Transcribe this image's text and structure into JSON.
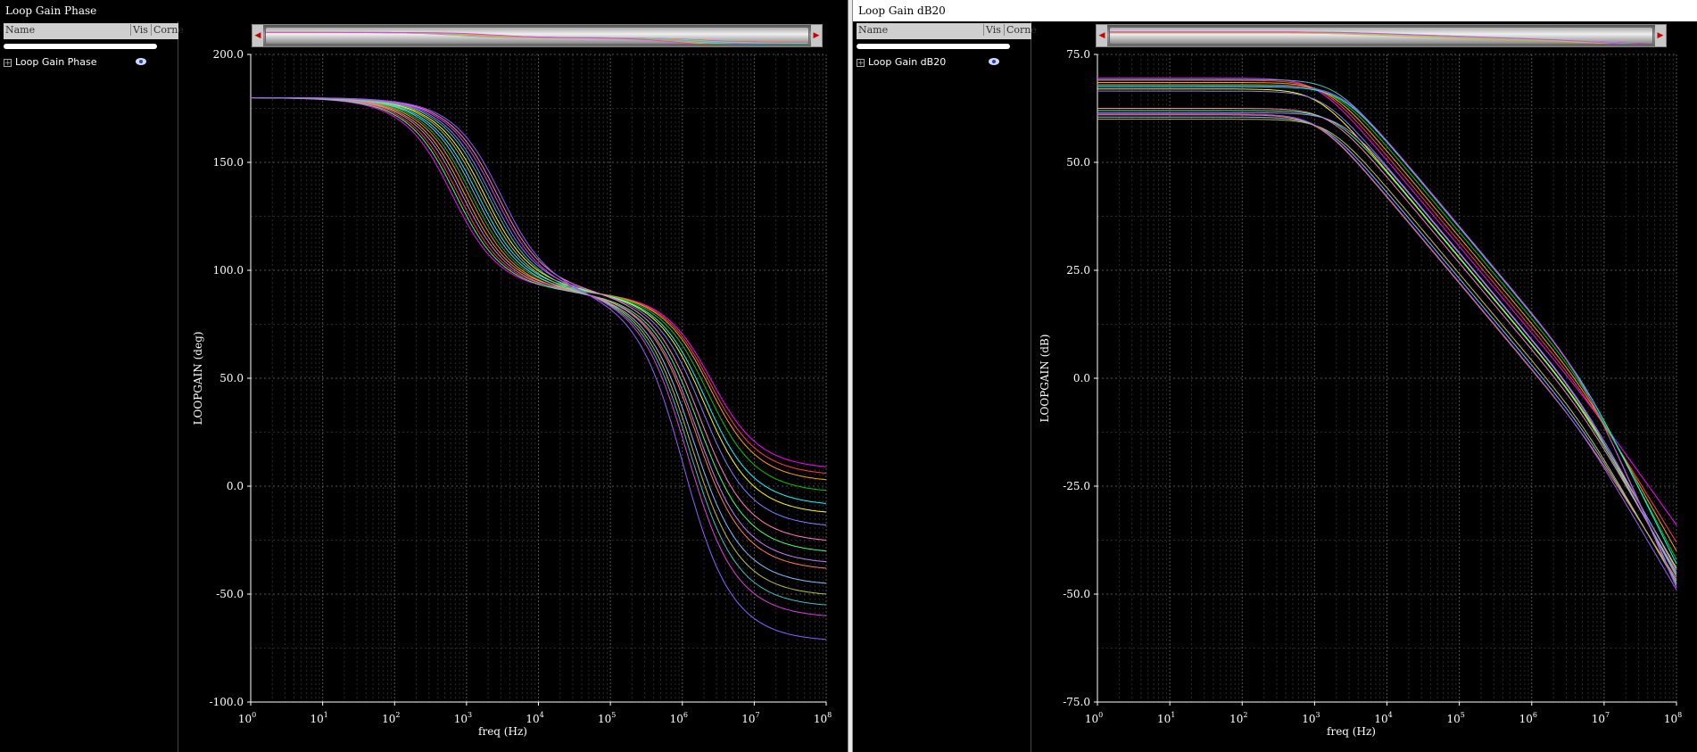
{
  "panels": {
    "phase": {
      "window_title": "Loop Gain Phase",
      "columns": [
        "Name",
        "Vis",
        "Corne"
      ],
      "tree_item": "Loop Gain Phase"
    },
    "gain": {
      "window_title": "Loop Gain dB20",
      "columns": [
        "Name",
        "Vis",
        "Corne"
      ],
      "tree_item": "Loop Gain dB20"
    }
  },
  "colors": {
    "background": "#000000",
    "axis": "#ffffff",
    "grid": "#444444",
    "series": [
      "#ff00ff",
      "#ff4040",
      "#ffa500",
      "#00c800",
      "#00ffff",
      "#ffff00",
      "#8080ff",
      "#ff80c0",
      "#40ff80",
      "#c080ff",
      "#ff8040",
      "#80c0ff",
      "#c0c040",
      "#40c0c0",
      "#e040e0",
      "#9060ff"
    ]
  },
  "chart_data": [
    {
      "type": "line",
      "xlabel": "freq (Hz)",
      "ylabel": "LOOPGAIN (deg)",
      "x_scale": "log",
      "xlim": [
        1,
        100000000
      ],
      "ylim": [
        -100,
        200
      ],
      "y_ticks": [
        "200.0",
        "150.0",
        "100.0",
        "50.0",
        "0.0",
        "-50.0",
        "-100.0"
      ],
      "x_ticks": [
        {
          "base": "10",
          "exp": "0"
        },
        {
          "base": "10",
          "exp": "1"
        },
        {
          "base": "10",
          "exp": "2"
        },
        {
          "base": "10",
          "exp": "3"
        },
        {
          "base": "10",
          "exp": "4"
        },
        {
          "base": "10",
          "exp": "5"
        },
        {
          "base": "10",
          "exp": "6"
        },
        {
          "base": "10",
          "exp": "7"
        },
        {
          "base": "10",
          "exp": "8"
        }
      ],
      "series_count": 16,
      "curve_points_x": [
        1,
        10,
        100,
        1000,
        10000,
        100000,
        1000000,
        10000000,
        100000000
      ],
      "series_ranges": {
        "low_freq_value": 180,
        "mid_plateau": 90,
        "end_values_at_1e8": [
          9,
          6,
          3,
          -2,
          -8,
          -12,
          -18,
          -25,
          -30,
          -35,
          -38,
          -45,
          -50,
          -55,
          -60,
          -71
        ]
      }
    },
    {
      "type": "line",
      "xlabel": "freq (Hz)",
      "ylabel": "LOOPGAIN (dB)",
      "x_scale": "log",
      "xlim": [
        1,
        100000000
      ],
      "ylim": [
        -75,
        75
      ],
      "y_ticks": [
        "75.0",
        "50.0",
        "25.0",
        "0.0",
        "-25.0",
        "-50.0",
        "-75.0"
      ],
      "x_ticks": [
        {
          "base": "10",
          "exp": "0"
        },
        {
          "base": "10",
          "exp": "1"
        },
        {
          "base": "10",
          "exp": "2"
        },
        {
          "base": "10",
          "exp": "3"
        },
        {
          "base": "10",
          "exp": "4"
        },
        {
          "base": "10",
          "exp": "5"
        },
        {
          "base": "10",
          "exp": "6"
        },
        {
          "base": "10",
          "exp": "7"
        },
        {
          "base": "10",
          "exp": "8"
        }
      ],
      "series_count": 16,
      "series_ranges": {
        "dc_gains": [
          69.5,
          69,
          68.5,
          68,
          67.5,
          67,
          66.5,
          62.5,
          62,
          61.5,
          61,
          60.5,
          60,
          69.2,
          67.8,
          61.2
        ],
        "end_values_at_1e8": [
          -34,
          -38,
          -40,
          -42,
          -43,
          -44,
          -44.5,
          -45,
          -45.5,
          -46,
          -46.5,
          -47,
          -47.5,
          -48,
          -48.5,
          -49
        ]
      }
    }
  ]
}
